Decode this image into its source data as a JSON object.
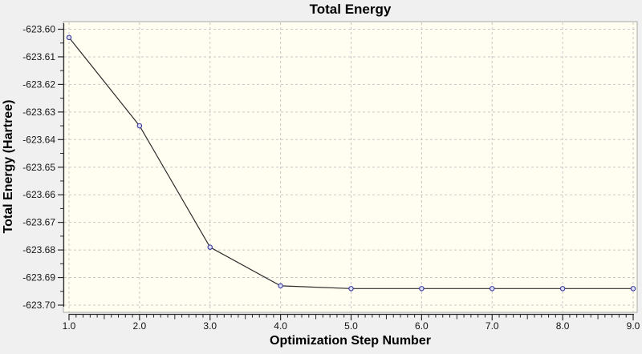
{
  "chart_data": {
    "type": "line",
    "title": "Total Energy",
    "xlabel": "Optimization Step Number",
    "ylabel": "Total Energy (Hartree)",
    "x": [
      1,
      2,
      3,
      4,
      5,
      6,
      7,
      8,
      9
    ],
    "series": [
      {
        "name": "Total Energy",
        "values": [
          -623.603,
          -623.635,
          -623.679,
          -623.693,
          -623.694,
          -623.694,
          -623.694,
          -623.694,
          -623.694
        ]
      }
    ],
    "xlim": [
      1.0,
      9.0
    ],
    "ylim": [
      -623.7,
      -623.6
    ],
    "x_tick_labels": [
      "1.0",
      "2.0",
      "3.0",
      "4.0",
      "5.0",
      "6.0",
      "7.0",
      "8.0",
      "9.0"
    ],
    "y_tick_labels": [
      "-623.60",
      "-623.61",
      "-623.62",
      "-623.63",
      "-623.64",
      "-623.65",
      "-623.66",
      "-623.67",
      "-623.68",
      "-623.69",
      "-623.70"
    ],
    "x_minor_tick_step": 0.1,
    "x_medium_tick_step": 0.5,
    "y_minor_tick_step": 0.005,
    "grid": true,
    "grid_style": "dashed",
    "legend": "none",
    "marker_shape": "circle",
    "colors": {
      "outer_background": "#f0f0f0",
      "plot_background": "#fffef0",
      "plot_border": "#a8a8a8",
      "gridline": "#c7c7c7",
      "axis": "#2a2a2a",
      "tick_text": "#141414",
      "line": "#2d2d2d",
      "marker_stroke": "#3a3aa0",
      "marker_fill": "#dfdff5"
    }
  }
}
